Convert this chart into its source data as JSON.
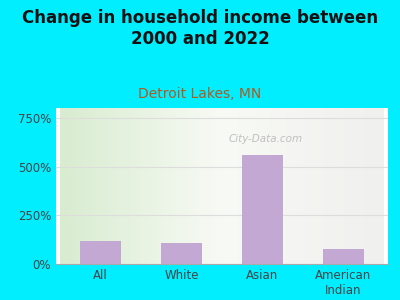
{
  "title": "Change in household income between\n2000 and 2022",
  "subtitle": "Detroit Lakes, MN",
  "categories": [
    "All",
    "White",
    "Asian",
    "American\nIndian"
  ],
  "values": [
    120,
    110,
    560,
    75
  ],
  "bar_color": "#c4a8d4",
  "background_outer": "#00eeff",
  "title_fontsize": 12,
  "title_color": "#111111",
  "subtitle_fontsize": 10,
  "subtitle_color": "#b05a20",
  "yticks": [
    0,
    250,
    500,
    750
  ],
  "ylim": [
    0,
    800
  ],
  "watermark": "City-Data.com",
  "grid_color": "#dddddd",
  "tick_color": "#444444"
}
